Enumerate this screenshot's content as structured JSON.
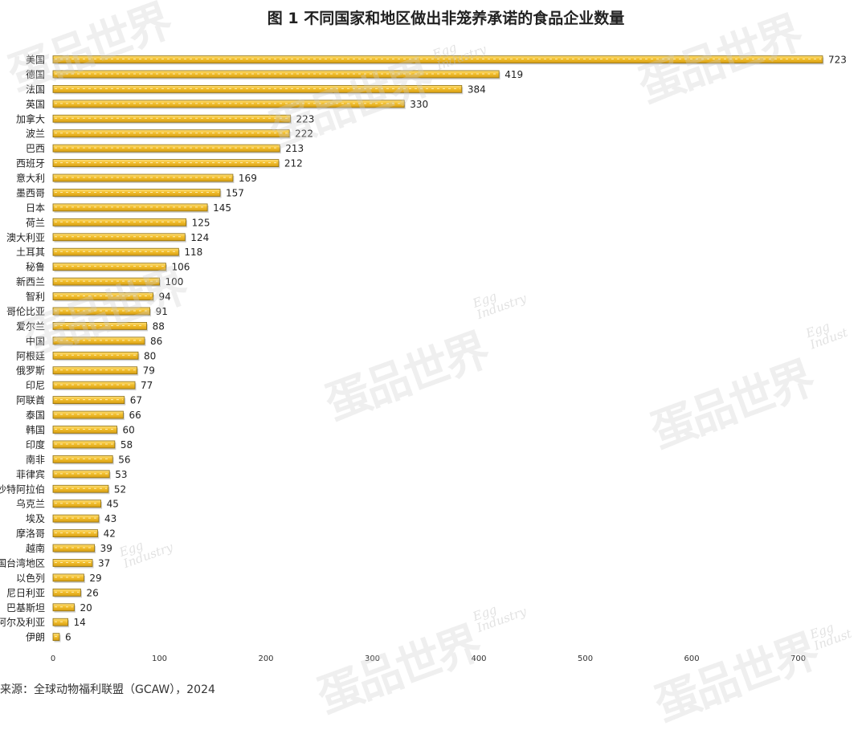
{
  "chart_data": {
    "type": "bar",
    "orientation": "horizontal",
    "title": "图 1  不同国家和地区做出非笼养承诺的食品企业数量",
    "categories": [
      "美国",
      "德国",
      "法国",
      "英国",
      "加拿大",
      "波兰",
      "巴西",
      "西班牙",
      "意大利",
      "墨西哥",
      "日本",
      "荷兰",
      "澳大利亚",
      "土耳其",
      "秘鲁",
      "新西兰",
      "智利",
      "哥伦比亚",
      "爱尔兰",
      "中国",
      "阿根廷",
      "俄罗斯",
      "印尼",
      "阿联酋",
      "泰国",
      "韩国",
      "印度",
      "南非",
      "菲律宾",
      "沙特阿拉伯",
      "乌克兰",
      "埃及",
      "摩洛哥",
      "越南",
      "中国台湾地区",
      "以色列",
      "尼日利亚",
      "巴基斯坦",
      "阿尔及利亚",
      "伊朗"
    ],
    "values": [
      723,
      419,
      384,
      330,
      223,
      222,
      213,
      212,
      169,
      157,
      145,
      125,
      124,
      118,
      106,
      100,
      94,
      91,
      88,
      86,
      80,
      79,
      77,
      67,
      66,
      60,
      58,
      56,
      53,
      52,
      45,
      43,
      42,
      39,
      37,
      29,
      26,
      20,
      14,
      6
    ],
    "xlim": [
      0,
      723
    ],
    "xticks": [
      0,
      100,
      200,
      300,
      400,
      500,
      600,
      700
    ],
    "grid": false,
    "bar_color": "#f0bc2c",
    "bar_edge_color": "#8c6e14"
  },
  "source": "来源：全球动物福利联盟（GCAW），2024",
  "watermark": {
    "cn": "蛋品世界",
    "en": "Egg\nIndustry"
  }
}
